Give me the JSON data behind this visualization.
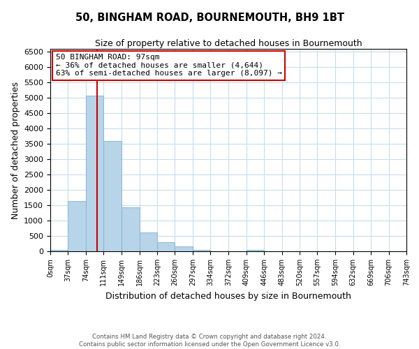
{
  "title": "50, BINGHAM ROAD, BOURNEMOUTH, BH9 1BT",
  "subtitle": "Size of property relative to detached houses in Bournemouth",
  "xlabel": "Distribution of detached houses by size in Bournemouth",
  "ylabel": "Number of detached properties",
  "bar_color": "#b8d4e8",
  "bar_edge_color": "#7ab4d4",
  "bin_edges": [
    0,
    37,
    74,
    111,
    149,
    186,
    223,
    260,
    297,
    334,
    372,
    409,
    446,
    483,
    520,
    557,
    594,
    632,
    669,
    706,
    743
  ],
  "bin_labels": [
    "0sqm",
    "37sqm",
    "74sqm",
    "111sqm",
    "149sqm",
    "186sqm",
    "223sqm",
    "260sqm",
    "297sqm",
    "334sqm",
    "372sqm",
    "409sqm",
    "446sqm",
    "483sqm",
    "520sqm",
    "557sqm",
    "594sqm",
    "632sqm",
    "669sqm",
    "706sqm",
    "743sqm"
  ],
  "heights": [
    50,
    1650,
    5080,
    3600,
    1430,
    620,
    300,
    150,
    50,
    0,
    0,
    50,
    0,
    0,
    0,
    0,
    0,
    0,
    0,
    0
  ],
  "ylim": [
    0,
    6600
  ],
  "yticks": [
    0,
    500,
    1000,
    1500,
    2000,
    2500,
    3000,
    3500,
    4000,
    4500,
    5000,
    5500,
    6000,
    6500
  ],
  "vline_x": 97,
  "vline_color": "#cc0000",
  "annotation_title": "50 BINGHAM ROAD: 97sqm",
  "annotation_line1": "← 36% of detached houses are smaller (4,644)",
  "annotation_line2": "63% of semi-detached houses are larger (8,097) →",
  "annotation_box_color": "#ffffff",
  "annotation_box_edge": "#cc0000",
  "footer1": "Contains HM Land Registry data © Crown copyright and database right 2024.",
  "footer2": "Contains public sector information licensed under the Open Government Licence v3.0.",
  "background_color": "#ffffff",
  "grid_color": "#c8dcea"
}
